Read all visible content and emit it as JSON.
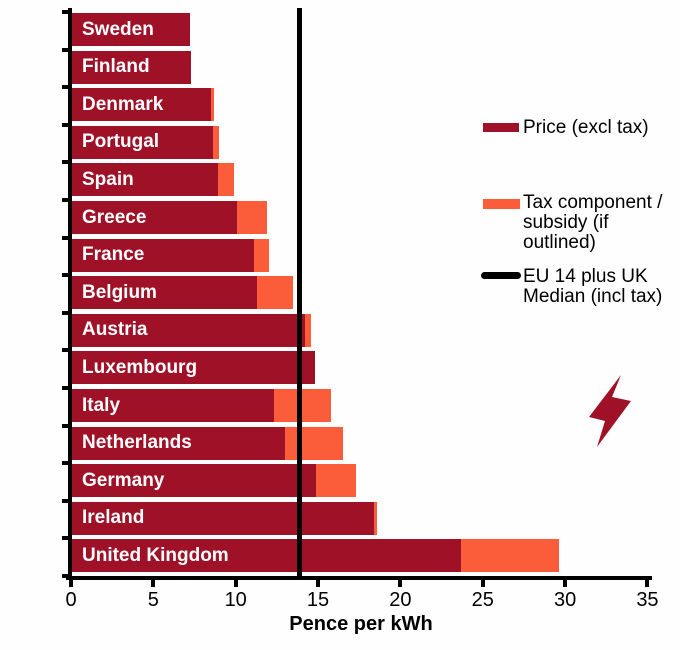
{
  "chart_data": {
    "type": "bar",
    "orientation": "horizontal",
    "stacked": true,
    "xlabel": "Pence per kWh",
    "xlim": [
      0,
      35
    ],
    "x_ticks": [
      0,
      5,
      10,
      15,
      20,
      25,
      30,
      35
    ],
    "grid": false,
    "legend_position": "right",
    "categories": [
      "Sweden",
      "Finland",
      "Denmark",
      "Portugal",
      "Spain",
      "Greece",
      "France",
      "Belgium",
      "Austria",
      "Luxembourg",
      "Italy",
      "Netherlands",
      "Germany",
      "Ireland",
      "United Kingdom"
    ],
    "series": [
      {
        "name": "Price (excl tax)",
        "color": "#9E1127",
        "values": [
          7.2,
          7.3,
          8.5,
          8.6,
          8.9,
          10.1,
          11.1,
          11.3,
          14.2,
          14.8,
          12.3,
          13.0,
          14.9,
          18.4,
          23.7
        ]
      },
      {
        "name": "Tax component / subsidy (if outlined)",
        "color": "#FB5D3B",
        "values": [
          0,
          0,
          0.2,
          0.4,
          1.0,
          1.8,
          0.9,
          2.2,
          0.4,
          0,
          3.5,
          3.5,
          2.4,
          0.2,
          5.9
        ]
      }
    ],
    "reference_line": {
      "name": "EU 14 plus UK Median (incl tax)",
      "value": 13.85,
      "color": "#000000"
    }
  },
  "legend": {
    "price_label": "Price (excl tax)",
    "tax_label": "Tax component /\nsubsidy (if\noutlined)",
    "median_label": "EU 14 plus UK\nMedian (incl tax)"
  },
  "axis": {
    "xlabel": "Pence per kWh"
  },
  "colors": {
    "price": "#9E1127",
    "tax": "#FB5D3B",
    "median": "#000000",
    "bar_text": "#FFFFFF",
    "lightning_icon": "#9E1127"
  }
}
